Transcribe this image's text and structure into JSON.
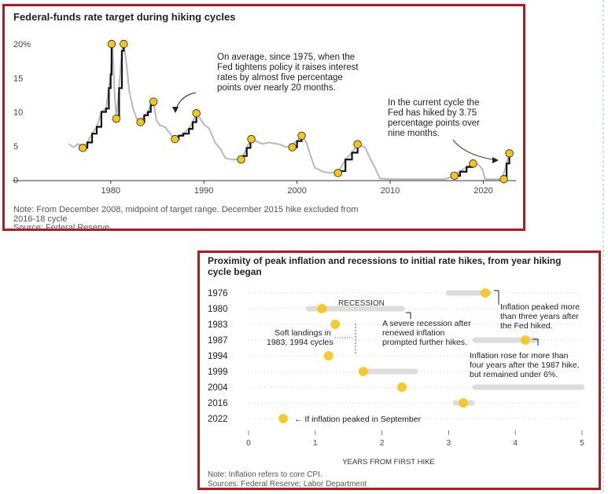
{
  "top_chart": {
    "title": "Federal-funds rate target during hiking cycles",
    "note_line1": "Note: From December 2008, midpoint of target range. December 2015 hike excluded from",
    "note_line2": "2016-18 cycle",
    "source": "Source: Federal Reserve",
    "annotation1": [
      "On average, since 1975, when the",
      "Fed tightens policy it raises interest",
      "rates by almost five percentage",
      "points over nearly 20 months."
    ],
    "annotation2": [
      "In the current cycle the",
      "Fed has hiked by 3.75",
      "percentage points over",
      "nine months."
    ]
  },
  "bottom_chart": {
    "title_line1": "Proximity of peak inflation and recessions to initial rate hikes, from year hiking",
    "title_line2": "cycle began",
    "recession_label": "RECESSION",
    "soft_landing": [
      "Soft landings in",
      "1983, 1994 cycles"
    ],
    "severe_recession": [
      "A severe recession after",
      "renewed inflation",
      "prompted further hikes."
    ],
    "inflation_1976": [
      "Inflation peaked more",
      "than three years after",
      "the Fed hiked."
    ],
    "inflation_1987": [
      "Inflation rose for more than",
      "four years after the 1987 hike,",
      "but remained under 6%."
    ],
    "september_note": "← If inflation peaked in September",
    "note": "Note: Inflation refers to core CPI.",
    "source": "Sources: Federal Reserve; Labor Department"
  },
  "colors": {
    "accent": "#c0141b",
    "dot": "#f5c518",
    "hike": "#111111",
    "line": "#b8b8b8",
    "bar": "#dcdcdc"
  },
  "chart_data": [
    {
      "type": "line",
      "title": "Federal-funds rate target during hiking cycles",
      "xlabel": "",
      "ylabel": "%",
      "xlim": [
        1972,
        2023
      ],
      "ylim": [
        0,
        20
      ],
      "xticks": [
        1980,
        1990,
        2000,
        2010,
        2020
      ],
      "xtick_labels": [
        "1980",
        "1990",
        "2000",
        "2010",
        "2020"
      ],
      "yticks": [
        0,
        5,
        10,
        15,
        20
      ],
      "ytick_labels": [
        "0",
        "5",
        "10",
        "15",
        "20%"
      ],
      "series": [
        {
          "name": "Fed funds target",
          "x": [
            1975.5,
            1976.0,
            1976.5,
            1977.0,
            1977.5,
            1978.0,
            1978.5,
            1979.0,
            1979.5,
            1979.8,
            1980.0,
            1980.2,
            1980.4,
            1980.6,
            1980.9,
            1981.2,
            1981.4,
            1981.7,
            1982.0,
            1982.4,
            1982.8,
            1983.2,
            1983.6,
            1984.0,
            1984.3,
            1984.6,
            1984.9,
            1985.3,
            1985.8,
            1986.4,
            1986.9,
            1987.3,
            1987.8,
            1988.4,
            1988.8,
            1989.2,
            1989.6,
            1990.0,
            1990.6,
            1991.2,
            1991.8,
            1992.3,
            1993.0,
            1993.9,
            1994.2,
            1994.6,
            1995.0,
            1995.6,
            1996.3,
            1997.0,
            1998.2,
            1998.8,
            1999.5,
            2000.0,
            2000.5,
            2001.0,
            2001.4,
            2001.9,
            2002.8,
            2003.5,
            2004.5,
            2005.2,
            2005.9,
            2006.5,
            2007.3,
            2007.9,
            2008.3,
            2008.9,
            2010.0,
            2012.0,
            2014.0,
            2015.9,
            2016.9,
            2017.5,
            2018.2,
            2018.9,
            2019.5,
            2019.9,
            2020.2,
            2021.0,
            2022.0,
            2022.2,
            2022.5,
            2022.8,
            2023.0
          ],
          "values": [
            5.3,
            4.8,
            5.3,
            4.7,
            5.5,
            6.8,
            7.8,
            10.0,
            10.5,
            13.5,
            15.5,
            20.0,
            13.0,
            9.0,
            13.5,
            19.0,
            20.0,
            17.0,
            13.0,
            10.5,
            9.0,
            8.5,
            9.5,
            10.0,
            11.0,
            11.5,
            8.8,
            8.0,
            7.8,
            6.8,
            6.0,
            6.5,
            6.8,
            7.5,
            8.5,
            9.8,
            9.0,
            8.2,
            7.5,
            5.5,
            4.5,
            3.2,
            3.0,
            3.0,
            3.5,
            4.7,
            6.0,
            5.7,
            5.3,
            5.5,
            5.2,
            4.8,
            5.2,
            5.7,
            6.5,
            5.5,
            3.8,
            1.8,
            1.2,
            1.0,
            1.3,
            3.0,
            4.0,
            5.25,
            4.8,
            3.0,
            2.0,
            0.2,
            0.1,
            0.1,
            0.1,
            0.1,
            0.6,
            1.2,
            1.9,
            2.4,
            2.2,
            1.6,
            0.1,
            0.1,
            0.1,
            0.9,
            2.4,
            3.9,
            4.4
          ]
        }
      ],
      "hiking_cycles": [
        {
          "start_x": 1977.0,
          "start_y": 4.7,
          "end_x": 1980.1,
          "end_y": 20.0
        },
        {
          "start_x": 1980.6,
          "start_y": 9.0,
          "end_x": 1981.4,
          "end_y": 20.0
        },
        {
          "start_x": 1983.2,
          "start_y": 8.5,
          "end_x": 1984.6,
          "end_y": 11.5
        },
        {
          "start_x": 1986.9,
          "start_y": 6.0,
          "end_x": 1989.2,
          "end_y": 9.8
        },
        {
          "start_x": 1994.0,
          "start_y": 3.0,
          "end_x": 1995.1,
          "end_y": 6.0
        },
        {
          "start_x": 1999.5,
          "start_y": 4.8,
          "end_x": 2000.5,
          "end_y": 6.5
        },
        {
          "start_x": 2004.4,
          "start_y": 1.0,
          "end_x": 2006.5,
          "end_y": 5.25
        },
        {
          "start_x": 2016.9,
          "start_y": 0.6,
          "end_x": 2018.9,
          "end_y": 2.4
        },
        {
          "start_x": 2022.2,
          "start_y": 0.1,
          "end_x": 2022.8,
          "end_y": 3.9
        }
      ]
    },
    {
      "type": "range",
      "title": "Proximity of peak inflation and recessions to initial rate hikes, from year hiking cycle began",
      "xlabel": "YEARS FROM FIRST HIKE",
      "xlim": [
        0,
        5
      ],
      "xticks": [
        0,
        1,
        2,
        3,
        4,
        5
      ],
      "xtick_labels": [
        "0",
        "1",
        "2",
        "3",
        "4",
        "5"
      ],
      "categories": [
        "1976",
        "1980",
        "1983",
        "1987",
        "1994",
        "1999",
        "2004",
        "2016",
        "2022"
      ],
      "recession_ranges": [
        [
          [
            3.0,
            3.6
          ]
        ],
        [
          [
            0.9,
            2.3
          ]
        ],
        [],
        [
          [
            3.4,
            4.3
          ]
        ],
        [],
        [
          [
            1.7,
            2.5
          ]
        ],
        [
          [
            3.4,
            5.0
          ]
        ],
        [
          [
            3.1,
            3.35
          ]
        ],
        []
      ],
      "inflation_peak": [
        3.55,
        1.1,
        1.3,
        4.15,
        1.2,
        1.72,
        2.3,
        3.22,
        0.52
      ]
    }
  ]
}
